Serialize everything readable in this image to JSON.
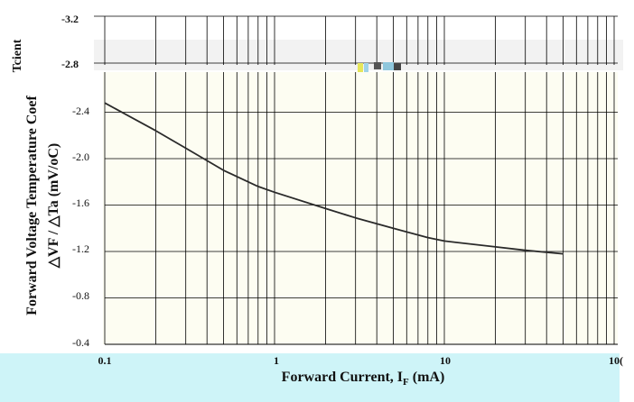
{
  "chart_data": {
    "type": "line",
    "xlabel_main": "Forward Current, I",
    "xlabel_sub": "F",
    "xlabel_unit": " (mA)",
    "ylabel_line1": "Forward Voltage Temperature Coef",
    "ylabel_line2": "△VF / △Ta (mV/oC)",
    "ylabel_fragment": "Tcient",
    "x_scale": "log",
    "xlim": [
      0.1,
      100
    ],
    "ylim": [
      -0.4,
      -3.2
    ],
    "x_ticks": [
      "0.1",
      "1",
      "10",
      "10("
    ],
    "y_ticks": [
      "-3.2",
      "-2.8",
      "-2.4",
      "-2.0",
      "-1.6",
      "-1.2",
      "-0.8",
      "-0.4"
    ],
    "grid": true,
    "series": [
      {
        "x": [
          0.1,
          0.2,
          0.3,
          0.5,
          0.8,
          1,
          2,
          3,
          5,
          8,
          10,
          20,
          30,
          50
        ],
        "y": [
          -2.48,
          -2.24,
          -2.09,
          -1.9,
          -1.76,
          -1.71,
          -1.57,
          -1.49,
          -1.4,
          -1.32,
          -1.29,
          -1.24,
          -1.21,
          -1.18
        ]
      }
    ]
  },
  "colors": {
    "plot_bg": "#fdfdf2",
    "top_strip_bg": "#f2f2f2",
    "bottom_band_bg": "#cef4f8",
    "grid": "#000000",
    "line": "#2a2a2a",
    "text": "#111111"
  }
}
